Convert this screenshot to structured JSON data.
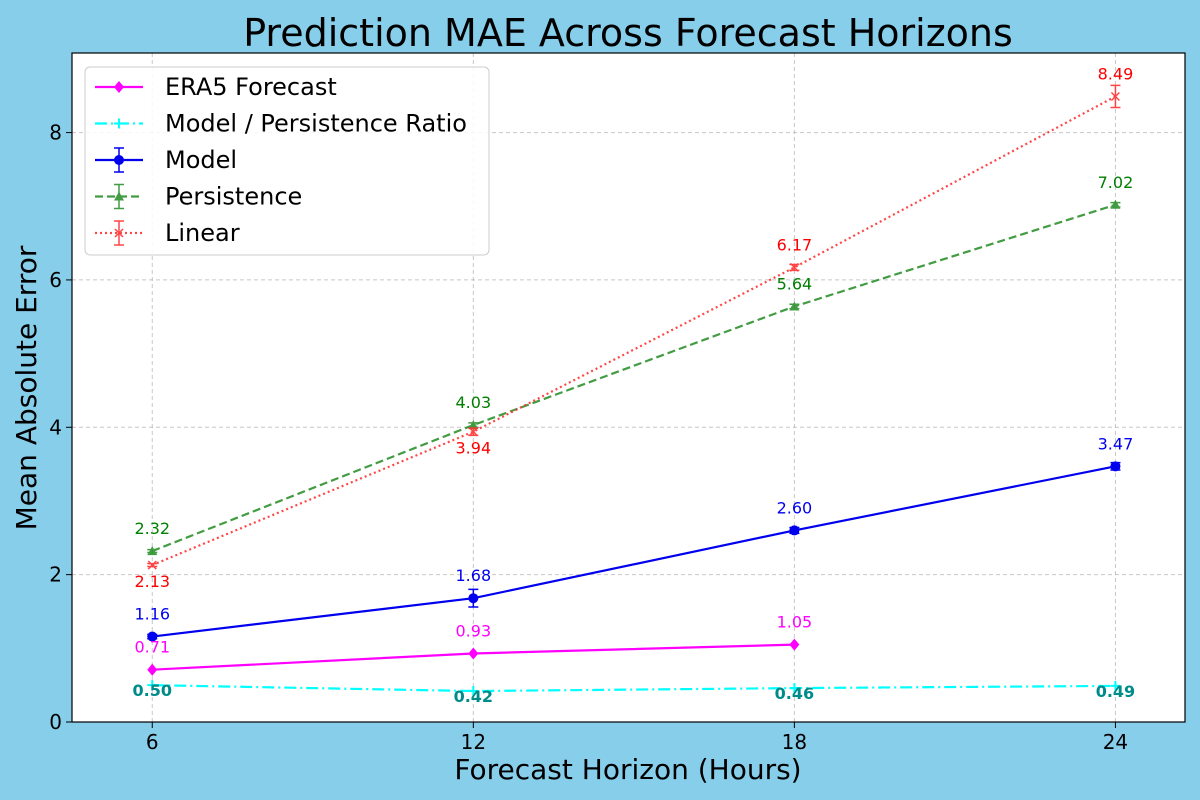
{
  "chart_data": {
    "type": "line",
    "title": "Prediction MAE Across Forecast Horizons",
    "xlabel": "Forecast Horizon (Hours)",
    "ylabel": "Mean Absolute Error",
    "x": [
      6,
      12,
      18,
      24
    ],
    "xlim": [
      4.5,
      25.3
    ],
    "ylim": [
      0,
      9.08
    ],
    "yticks": [
      0,
      2,
      4,
      6,
      8
    ],
    "grid": true,
    "legend_position": "top-left",
    "series": [
      {
        "name": "ERA5 Forecast",
        "x": [
          6,
          12,
          18
        ],
        "values": [
          0.71,
          0.93,
          1.05
        ],
        "labels": [
          "0.71",
          "0.93",
          "1.05"
        ],
        "color": "#FF00FF",
        "label_color": "#FF00FF",
        "dash": "solid",
        "marker": "diamond",
        "errors": null,
        "label_offset": -17,
        "bold": false,
        "opacity": 1
      },
      {
        "name": "Model / Persistence Ratio",
        "x": [
          6,
          12,
          18,
          24
        ],
        "values": [
          0.5,
          0.42,
          0.46,
          0.49
        ],
        "labels": [
          "0.50",
          "0.42",
          "0.46",
          "0.49"
        ],
        "color": "#00FFFF",
        "label_color": "#008B8B",
        "dash": "dashdot",
        "marker": "plus",
        "errors": null,
        "label_offset": 11,
        "bold": true,
        "opacity": 1
      },
      {
        "name": "Model",
        "x": [
          6,
          12,
          18,
          24
        ],
        "values": [
          1.16,
          1.68,
          2.6,
          3.47
        ],
        "labels": [
          "1.16",
          "1.68",
          "2.60",
          "3.47"
        ],
        "color": "#0000EE",
        "label_color": "#0000EE",
        "dash": "solid",
        "marker": "circle",
        "errors": [
          0.03,
          0.12,
          0.04,
          0.05
        ],
        "label_offset": -17,
        "bold": false,
        "opacity": 1
      },
      {
        "name": "Persistence",
        "x": [
          6,
          12,
          18,
          24
        ],
        "values": [
          2.32,
          4.03,
          5.64,
          7.02
        ],
        "labels": [
          "2.32",
          "4.03",
          "5.64",
          "7.02"
        ],
        "color": "#228B22",
        "label_color": "#008000",
        "dash": "dashed",
        "marker": "triangle",
        "errors": [
          0.02,
          0.03,
          0.03,
          0.03
        ],
        "label_offset": -17,
        "bold": false,
        "opacity": 0.85
      },
      {
        "name": "Linear",
        "x": [
          6,
          12,
          18,
          24
        ],
        "values": [
          2.13,
          3.94,
          6.17,
          8.49
        ],
        "labels": [
          "2.13",
          "3.94",
          "6.17",
          "8.49"
        ],
        "color": "#FF3333",
        "label_color": "#FF0000",
        "dash": "dotted",
        "marker": "x",
        "errors": [
          0.02,
          0.05,
          0.04,
          0.15
        ],
        "label_offset": [
          22,
          22,
          -17,
          -17
        ],
        "bold": false,
        "opacity": 0.9
      }
    ]
  }
}
